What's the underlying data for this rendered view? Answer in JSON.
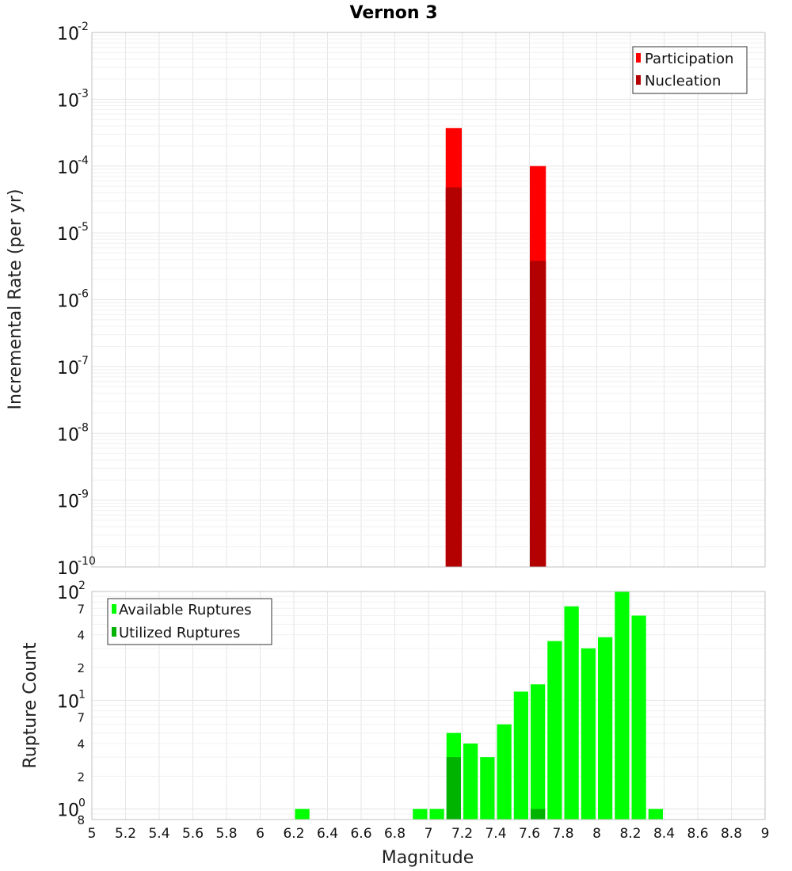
{
  "chart_data": [
    {
      "type": "bar",
      "title": "Vernon 3",
      "ylabel": "Incremental Rate (per yr)",
      "xlabel": "",
      "yscale": "log",
      "ylim": [
        1e-10,
        0.01
      ],
      "xlim": [
        5,
        9
      ],
      "bin_width": 0.1,
      "legend": {
        "placement": "top-right",
        "entries": [
          "Participation",
          "Nucleation"
        ]
      },
      "y_ticks": [
        {
          "base": "10",
          "exp": "-2",
          "value": 0.01
        },
        {
          "base": "10",
          "exp": "-3",
          "value": 0.001
        },
        {
          "base": "10",
          "exp": "-4",
          "value": 0.0001
        },
        {
          "base": "10",
          "exp": "-5",
          "value": 1e-05
        },
        {
          "base": "10",
          "exp": "-6",
          "value": 1e-06
        },
        {
          "base": "10",
          "exp": "-7",
          "value": 1e-07
        },
        {
          "base": "10",
          "exp": "-8",
          "value": 1e-08
        },
        {
          "base": "10",
          "exp": "-9",
          "value": 1e-09
        },
        {
          "base": "10",
          "exp": "-10",
          "value": 1e-10
        }
      ],
      "series": [
        {
          "name": "Participation",
          "color": "#ff0000",
          "points": [
            {
              "x": 7.15,
              "y": 0.00037
            },
            {
              "x": 7.65,
              "y": 0.0001
            }
          ]
        },
        {
          "name": "Nucleation",
          "color": "#b30000",
          "points": [
            {
              "x": 7.15,
              "y": 4.8e-05
            },
            {
              "x": 7.65,
              "y": 3.8e-06
            }
          ]
        }
      ]
    },
    {
      "type": "bar",
      "title": "",
      "ylabel": "Rupture Count",
      "xlabel": "Magnitude",
      "yscale": "log",
      "ylim": [
        0.8,
        100
      ],
      "xlim": [
        5,
        9
      ],
      "bin_width": 0.1,
      "legend": {
        "placement": "top-left",
        "entries": [
          "Available Ruptures",
          "Utilized Ruptures"
        ]
      },
      "x_ticks": [
        "5",
        "5.2",
        "5.4",
        "5.6",
        "5.8",
        "6",
        "6.2",
        "6.4",
        "6.6",
        "6.8",
        "7",
        "7.2",
        "7.4",
        "7.6",
        "7.8",
        "8",
        "8.2",
        "8.4",
        "8.6",
        "8.8",
        "9"
      ],
      "y_major_ticks": [
        {
          "base": "10",
          "exp": "2",
          "value": 100
        },
        {
          "base": "10",
          "exp": "1",
          "value": 10
        },
        {
          "base": "10",
          "exp": "0",
          "value": 1
        }
      ],
      "y_minor_ticks": [
        {
          "label": "7",
          "value": 70
        },
        {
          "label": "4",
          "value": 40
        },
        {
          "label": "2",
          "value": 20
        },
        {
          "label": "7",
          "value": 7
        },
        {
          "label": "4",
          "value": 4
        },
        {
          "label": "2",
          "value": 2
        },
        {
          "label": "8",
          "value": 0.8
        }
      ],
      "series": [
        {
          "name": "Available Ruptures",
          "color": "#00ff00",
          "points": [
            {
              "x": 6.25,
              "y": 1
            },
            {
              "x": 6.95,
              "y": 1
            },
            {
              "x": 7.05,
              "y": 1
            },
            {
              "x": 7.15,
              "y": 5
            },
            {
              "x": 7.25,
              "y": 4
            },
            {
              "x": 7.35,
              "y": 3
            },
            {
              "x": 7.45,
              "y": 6
            },
            {
              "x": 7.55,
              "y": 12
            },
            {
              "x": 7.65,
              "y": 14
            },
            {
              "x": 7.75,
              "y": 35
            },
            {
              "x": 7.85,
              "y": 73
            },
            {
              "x": 7.95,
              "y": 30
            },
            {
              "x": 8.05,
              "y": 38
            },
            {
              "x": 8.15,
              "y": 100
            },
            {
              "x": 8.25,
              "y": 60
            },
            {
              "x": 8.35,
              "y": 1
            }
          ]
        },
        {
          "name": "Utilized Ruptures",
          "color": "#00b300",
          "points": [
            {
              "x": 7.15,
              "y": 3
            },
            {
              "x": 7.65,
              "y": 1
            }
          ]
        }
      ]
    }
  ]
}
